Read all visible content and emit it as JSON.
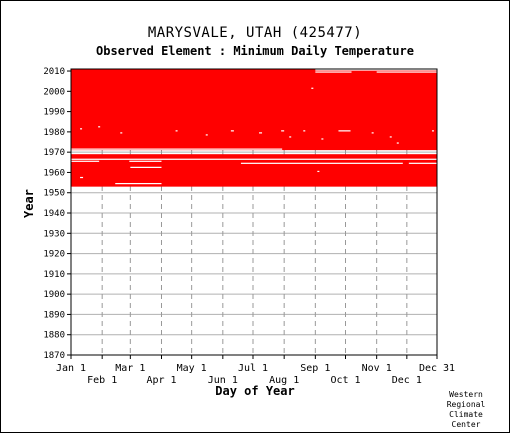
{
  "chart_data": {
    "type": "heatmap",
    "title": "MARYSVALE, UTAH   (425477)",
    "subtitle": "Observed Element : Minimum Daily Temperature",
    "xlabel": "Day of Year",
    "ylabel": "Year",
    "xlim": [
      1,
      365
    ],
    "ylim": [
      1870,
      2011
    ],
    "x_ticks_top_row": [
      {
        "label": "Jan 1",
        "day": 1
      },
      {
        "label": "Mar 1",
        "day": 60
      },
      {
        "label": "May 1",
        "day": 121
      },
      {
        "label": "Jul 1",
        "day": 182
      },
      {
        "label": "Sep 1",
        "day": 244
      },
      {
        "label": "Nov 1",
        "day": 305
      },
      {
        "label": "Dec 31",
        "day": 365
      }
    ],
    "x_ticks_bottom_row": [
      {
        "label": "Feb 1",
        "day": 32
      },
      {
        "label": "Apr 1",
        "day": 91
      },
      {
        "label": "Jun 1",
        "day": 152
      },
      {
        "label": "Aug 1",
        "day": 213
      },
      {
        "label": "Oct 1",
        "day": 274
      },
      {
        "label": "Dec 1",
        "day": 335
      }
    ],
    "y_ticks": [
      1870,
      1880,
      1890,
      1900,
      1910,
      1920,
      1930,
      1940,
      1950,
      1960,
      1970,
      1980,
      1990,
      2000,
      2010
    ],
    "data_color": "#ff0000",
    "observed_blocks": [
      {
        "year_start": 1953,
        "year_end": 1968,
        "day_start": 1,
        "day_end": 365
      },
      {
        "year_start": 1971,
        "year_end": 2010,
        "day_start": 1,
        "day_end": 365
      }
    ],
    "missing_segments": [
      {
        "year": 1966,
        "day_start": 1,
        "day_end": 365
      },
      {
        "year": 1965,
        "day_start": 1,
        "day_end": 28
      },
      {
        "year": 1965,
        "day_start": 59,
        "day_end": 90
      },
      {
        "year": 1964,
        "day_start": 170,
        "day_end": 330
      },
      {
        "year": 1964,
        "day_start": 337,
        "day_end": 365
      },
      {
        "year": 1962,
        "day_start": 60,
        "day_end": 90
      },
      {
        "year": 1954,
        "day_start": 45,
        "day_end": 90
      },
      {
        "year": 1957,
        "day_start": 10,
        "day_end": 12
      },
      {
        "year": 1960,
        "day_start": 246,
        "day_end": 247
      },
      {
        "year": 1971,
        "day_start": 1,
        "day_end": 210
      },
      {
        "year": 2010,
        "day_start": 244,
        "day_end": 365
      },
      {
        "year": 2009,
        "day_start": 244,
        "day_end": 279
      },
      {
        "year": 2009,
        "day_start": 305,
        "day_end": 365
      },
      {
        "year": 1980,
        "day_start": 267,
        "day_end": 278
      },
      {
        "year": 1981,
        "day_start": 10,
        "day_end": 11
      },
      {
        "year": 1982,
        "day_start": 28,
        "day_end": 29
      },
      {
        "year": 1979,
        "day_start": 50,
        "day_end": 51
      },
      {
        "year": 1980,
        "day_start": 105,
        "day_end": 106
      },
      {
        "year": 1978,
        "day_start": 135,
        "day_end": 136
      },
      {
        "year": 1980,
        "day_start": 160,
        "day_end": 162
      },
      {
        "year": 1979,
        "day_start": 188,
        "day_end": 190
      },
      {
        "year": 1980,
        "day_start": 210,
        "day_end": 212
      },
      {
        "year": 1977,
        "day_start": 218,
        "day_end": 219
      },
      {
        "year": 1980,
        "day_start": 232,
        "day_end": 233
      },
      {
        "year": 2001,
        "day_start": 240,
        "day_end": 241
      },
      {
        "year": 1976,
        "day_start": 250,
        "day_end": 251
      },
      {
        "year": 1979,
        "day_start": 300,
        "day_end": 301
      },
      {
        "year": 1977,
        "day_start": 318,
        "day_end": 319
      },
      {
        "year": 1974,
        "day_start": 325,
        "day_end": 326
      },
      {
        "year": 1980,
        "day_start": 360,
        "day_end": 361
      }
    ]
  },
  "credit_lines": [
    "Western",
    "Regional",
    "Climate",
    "Center"
  ]
}
